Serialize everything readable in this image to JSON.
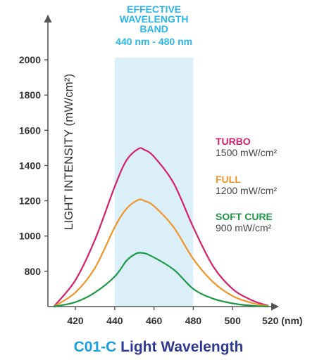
{
  "chart_data": {
    "type": "line",
    "ylabel": "LIGHT INTENSITY (mW/cm²)",
    "xlim": [
      406,
      520
    ],
    "ylim": [
      600,
      2100
    ],
    "x_ticks": [
      "420",
      "440",
      "460",
      "480",
      "500",
      "520 (nm)"
    ],
    "x_tick_values": [
      420,
      440,
      460,
      480,
      500,
      520
    ],
    "y_ticks": [
      "2000",
      "1800",
      "1600",
      "1400",
      "1200",
      "1000",
      "800"
    ],
    "y_tick_values": [
      2000,
      1800,
      1600,
      1400,
      1200,
      1000,
      800
    ],
    "band": {
      "start": 440,
      "end": 480,
      "lines": [
        "EFFECTIVE",
        "WAVELENGTH",
        "BAND",
        "440 nm - 480 nm"
      ],
      "color": "#29b6e8",
      "fill": "#dbeff9"
    },
    "series": [
      {
        "name": "TURBO",
        "value_label": "1500 mW/cm²",
        "color": "#d41f6a",
        "x": [
          409,
          420,
          430,
          440,
          446,
          452,
          455,
          460,
          470,
          480,
          490,
          500,
          510,
          518
        ],
        "y": [
          600,
          750,
          980,
          1280,
          1430,
          1495,
          1490,
          1450,
          1300,
          1050,
          830,
          700,
          635,
          605
        ]
      },
      {
        "name": "FULL",
        "value_label": "1200 mW/cm²",
        "color": "#f0952a",
        "x": [
          409,
          420,
          430,
          440,
          446,
          452,
          455,
          460,
          470,
          480,
          490,
          500,
          510,
          518
        ],
        "y": [
          600,
          680,
          820,
          1050,
          1155,
          1205,
          1200,
          1170,
          1050,
          870,
          740,
          660,
          620,
          603
        ]
      },
      {
        "name": "SOFT CURE",
        "value_label": "900 mW/cm²",
        "color": "#1f9748",
        "x": [
          409,
          420,
          430,
          440,
          446,
          450,
          453,
          458,
          470,
          480,
          490,
          500,
          510,
          518
        ],
        "y": [
          600,
          625,
          680,
          770,
          860,
          895,
          905,
          890,
          810,
          700,
          645,
          618,
          605,
          600
        ]
      }
    ]
  },
  "caption": {
    "code": "C01-C",
    "title": "Light Wavelength"
  }
}
